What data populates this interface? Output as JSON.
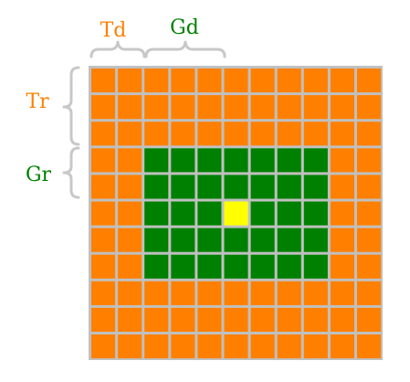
{
  "grid": {
    "rows": 11,
    "cols": 11,
    "guard_region": {
      "row_start": 3,
      "row_end": 7,
      "col_start": 2,
      "col_end": 8
    },
    "cell_under_test": {
      "row": 5,
      "col": 5
    }
  },
  "colors": {
    "training": "#ff8000",
    "guard": "#008000",
    "cut": "#ffff00",
    "grid_line": "#c0c0c0"
  },
  "labels": {
    "td": "Td",
    "gd": "Gd",
    "tr": "Tr",
    "gr": "Gr"
  }
}
